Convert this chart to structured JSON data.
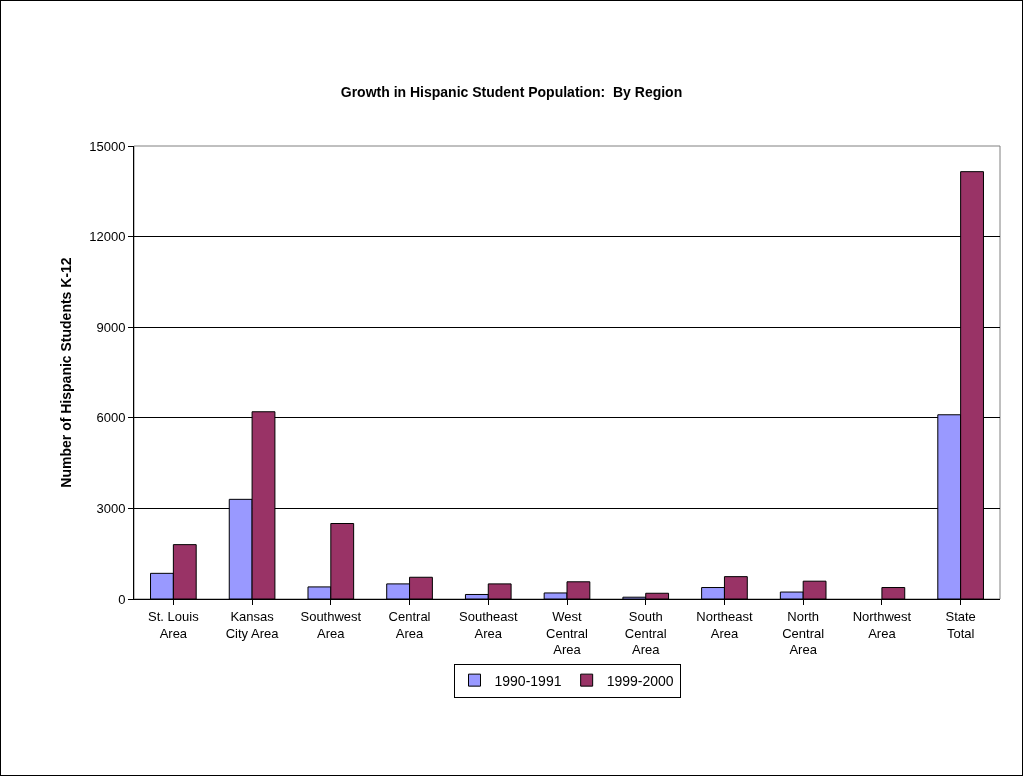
{
  "chart_data": {
    "type": "bar",
    "title": "Growth in Hispanic Student Population:  By Region",
    "ylabel": "Number of Hispanic Students K-12",
    "categories": [
      "St. Louis Area",
      "Kansas City Area",
      "Southwest Area",
      "Central Area",
      "Southeast Area",
      "West Central Area",
      "South Central Area",
      "Northeast Area",
      "North Central Area",
      "Northwest Area",
      "State Total"
    ],
    "series": [
      {
        "name": "1990-1991",
        "color": "#9999ff",
        "values": [
          850,
          3300,
          400,
          500,
          150,
          200,
          60,
          380,
          230,
          null,
          6100
        ]
      },
      {
        "name": "1999-2000",
        "color": "#993366",
        "values": [
          1800,
          6200,
          2500,
          720,
          500,
          570,
          190,
          740,
          590,
          380,
          14150
        ]
      }
    ],
    "ylim": [
      0,
      15000
    ],
    "yticks": [
      0,
      3000,
      6000,
      9000,
      12000,
      15000
    ],
    "grid": "y",
    "legend": "bottom"
  }
}
